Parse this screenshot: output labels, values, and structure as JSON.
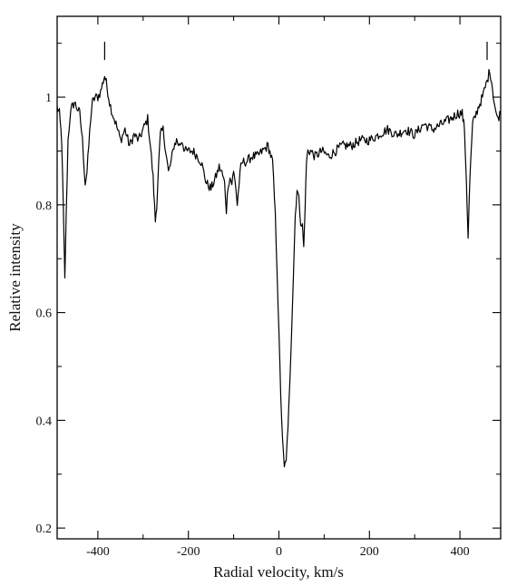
{
  "chart_data": {
    "type": "line",
    "title": "",
    "xlabel": "Radial velocity, km/s",
    "ylabel": "Relative intensity",
    "xlim": [
      -490,
      490
    ],
    "ylim": [
      0.18,
      1.15
    ],
    "grid": false,
    "legend": "none",
    "line_color": "#000000",
    "x_ticks": [
      -400,
      -200,
      0,
      200,
      400
    ],
    "x_tick_labels": [
      "-400",
      "-200",
      "0",
      "200",
      "400"
    ],
    "y_ticks": [
      0.2,
      0.4,
      0.6,
      0.8,
      1.0
    ],
    "y_tick_labels": [
      "0.2",
      "0.4",
      "0.6",
      "0.8",
      "1"
    ],
    "markers": [
      -385,
      460
    ],
    "series": [
      {
        "x": [
          -490,
          -485,
          -480,
          -476,
          -473,
          -470,
          -466,
          -462,
          -458,
          -452,
          -446,
          -440,
          -434,
          -428,
          -424,
          -420,
          -416,
          -412,
          -406,
          -400,
          -394,
          -388,
          -385,
          -380,
          -374,
          -368,
          -360,
          -350,
          -340,
          -330,
          -320,
          -310,
          -300,
          -290,
          -284,
          -278,
          -273,
          -270,
          -266,
          -262,
          -256,
          -250,
          -244,
          -238,
          -232,
          -226,
          -220,
          -214,
          -208,
          -200,
          -190,
          -180,
          -172,
          -166,
          -160,
          -150,
          -140,
          -132,
          -126,
          -120,
          -116,
          -112,
          -108,
          -104,
          -100,
          -96,
          -92,
          -88,
          -84,
          -80,
          -76,
          -72,
          -60,
          -48,
          -36,
          -24,
          -14,
          -8,
          -4,
          0,
          4,
          8,
          12,
          16,
          20,
          26,
          32,
          36,
          40,
          44,
          48,
          52,
          55,
          58,
          61,
          64,
          70,
          80,
          95,
          110,
          125,
          140,
          160,
          180,
          200,
          220,
          240,
          260,
          280,
          300,
          320,
          340,
          360,
          380,
          395,
          405,
          410,
          414,
          418,
          422,
          428,
          440,
          450,
          460,
          466,
          470,
          476,
          482,
          490
        ],
        "y": [
          0.98,
          0.97,
          0.92,
          0.78,
          0.66,
          0.78,
          0.92,
          0.96,
          0.98,
          0.99,
          0.98,
          0.97,
          0.92,
          0.84,
          0.86,
          0.91,
          0.96,
          0.99,
          1.0,
          1.0,
          1.01,
          1.03,
          1.04,
          1.02,
          0.99,
          0.97,
          0.95,
          0.92,
          0.94,
          0.91,
          0.93,
          0.92,
          0.94,
          0.96,
          0.91,
          0.85,
          0.77,
          0.8,
          0.87,
          0.93,
          0.94,
          0.9,
          0.86,
          0.88,
          0.91,
          0.92,
          0.91,
          0.92,
          0.9,
          0.9,
          0.9,
          0.89,
          0.88,
          0.86,
          0.84,
          0.83,
          0.85,
          0.87,
          0.86,
          0.84,
          0.79,
          0.84,
          0.85,
          0.84,
          0.86,
          0.84,
          0.8,
          0.84,
          0.87,
          0.88,
          0.88,
          0.88,
          0.89,
          0.89,
          0.9,
          0.91,
          0.88,
          0.78,
          0.68,
          0.56,
          0.45,
          0.36,
          0.31,
          0.33,
          0.38,
          0.52,
          0.67,
          0.78,
          0.83,
          0.81,
          0.77,
          0.76,
          0.72,
          0.8,
          0.88,
          0.9,
          0.9,
          0.89,
          0.9,
          0.89,
          0.9,
          0.91,
          0.91,
          0.92,
          0.92,
          0.93,
          0.94,
          0.93,
          0.94,
          0.93,
          0.95,
          0.94,
          0.95,
          0.96,
          0.97,
          0.97,
          0.94,
          0.85,
          0.74,
          0.85,
          0.95,
          0.98,
          1.0,
          1.03,
          1.05,
          1.03,
          0.99,
          0.96,
          0.97
        ]
      }
    ]
  }
}
